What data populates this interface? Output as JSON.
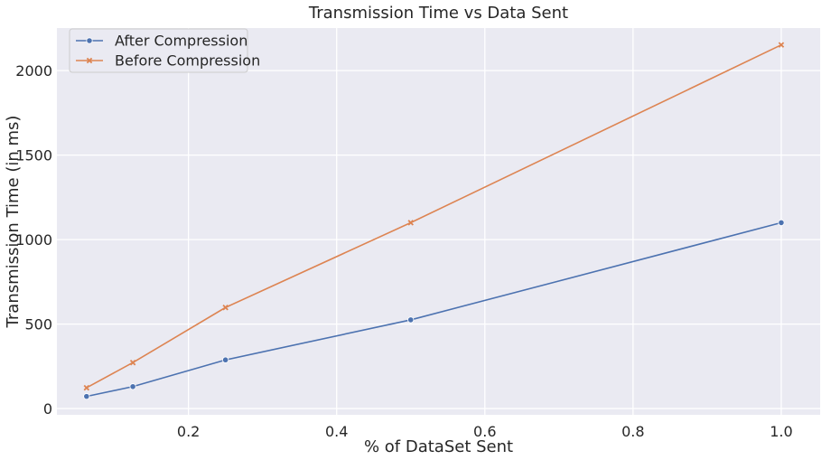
{
  "chart_data": {
    "type": "line",
    "title": "Transmission Time vs Data Sent",
    "xlabel": "% of DataSet Sent",
    "ylabel": "Transmission Time (in ms)",
    "xlim": [
      0.0225,
      1.0525
    ],
    "ylim": [
      -37,
      2252
    ],
    "xticks": [
      0.2,
      0.4,
      0.6,
      0.8,
      1.0
    ],
    "xtick_labels": [
      "0.2",
      "0.4",
      "0.6",
      "0.8",
      "1.0"
    ],
    "yticks": [
      0,
      500,
      1000,
      1500,
      2000
    ],
    "ytick_labels": [
      "0",
      "500",
      "1000",
      "1500",
      "2000"
    ],
    "grid": true,
    "legend_position": "top-left",
    "x": [
      0.0625,
      0.125,
      0.25,
      0.5,
      1.0
    ],
    "series": [
      {
        "name": "After Compression",
        "color": "#4c72b0",
        "marker": "circle",
        "values": [
          72,
          130,
          288,
          525,
          1100
        ]
      },
      {
        "name": "Before Compression",
        "color": "#dd8452",
        "marker": "x",
        "values": [
          123,
          272,
          598,
          1100,
          2152
        ]
      }
    ]
  }
}
